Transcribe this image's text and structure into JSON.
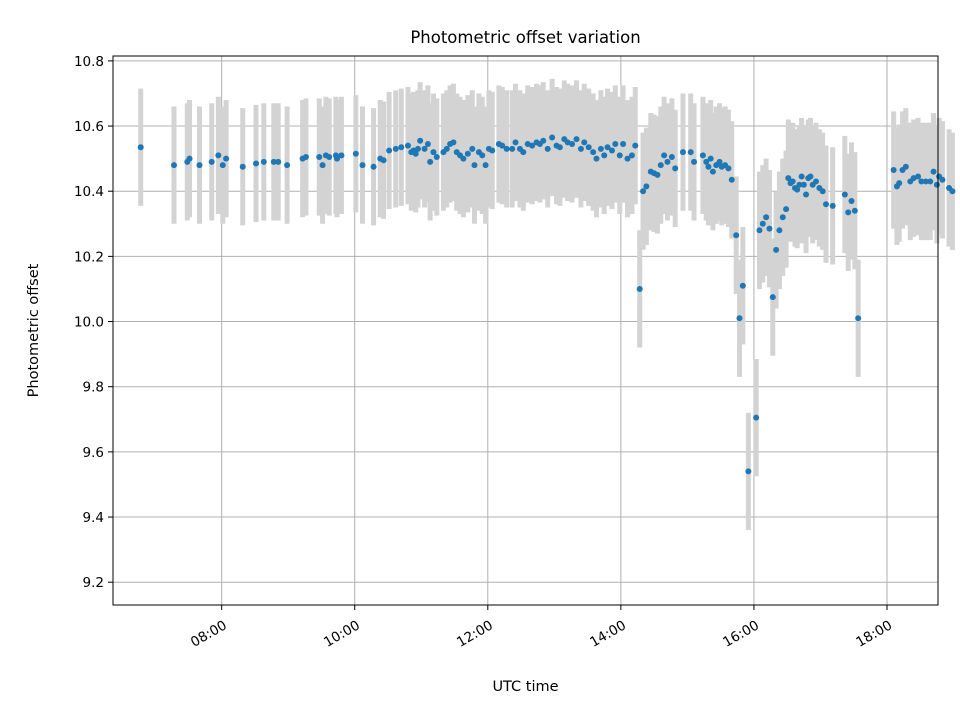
{
  "chart_data": {
    "type": "scatter",
    "title": "Photometric offset variation",
    "xlabel": "UTC time",
    "ylabel": "Photometric offset",
    "x_unit": "UTC time of day",
    "xlim": [
      "06:22",
      "18:46"
    ],
    "ylim": [
      9.13,
      10.815
    ],
    "x_ticks": [
      "08:00",
      "10:00",
      "12:00",
      "14:00",
      "16:00",
      "18:00"
    ],
    "y_ticks": [
      9.2,
      9.4,
      9.6,
      9.8,
      10.0,
      10.2,
      10.4,
      10.6,
      10.8
    ],
    "y_tick_labels": [
      "9.2",
      "9.4",
      "9.6",
      "9.8",
      "10.0",
      "10.2",
      "10.4",
      "10.6",
      "10.8"
    ],
    "grid": true,
    "colors": {
      "points": "#1f77b4",
      "error_bars": "#d3d3d3",
      "grid": "#b0b0b0"
    },
    "series": [
      {
        "error_bar_half_width": 0.18,
        "points": [
          [
            "06:47",
            10.535
          ],
          [
            "07:17",
            10.48
          ],
          [
            "07:29",
            10.49
          ],
          [
            "07:31",
            10.5
          ],
          [
            "07:40",
            10.48
          ],
          [
            "07:51",
            10.49
          ],
          [
            "07:57",
            10.51
          ],
          [
            "08:01",
            10.48
          ],
          [
            "08:04",
            10.5
          ],
          [
            "08:19",
            10.475
          ],
          [
            "08:31",
            10.485
          ],
          [
            "08:38",
            10.49
          ],
          [
            "08:47",
            10.49
          ],
          [
            "08:51",
            10.49
          ],
          [
            "08:59",
            10.48
          ],
          [
            "09:13",
            10.5
          ],
          [
            "09:16",
            10.505
          ],
          [
            "09:28",
            10.505
          ],
          [
            "09:31",
            10.48
          ],
          [
            "09:34",
            10.51
          ],
          [
            "09:37",
            10.505
          ],
          [
            "09:43",
            10.51
          ],
          [
            "09:44",
            10.5
          ],
          [
            "09:48",
            10.51
          ],
          [
            "10:01",
            10.515
          ],
          [
            "10:07",
            10.48
          ],
          [
            "10:17",
            10.475
          ],
          [
            "10:23",
            10.5
          ],
          [
            "10:26",
            10.495
          ],
          [
            "10:31",
            10.525
          ],
          [
            "10:37",
            10.53
          ],
          [
            "10:42",
            10.535
          ],
          [
            "10:48",
            10.54
          ],
          [
            "10:51",
            10.52
          ],
          [
            "10:53",
            10.525
          ],
          [
            "10:55",
            10.515
          ],
          [
            "10:57",
            10.53
          ],
          [
            "10:59",
            10.555
          ],
          [
            "11:03",
            10.53
          ],
          [
            "11:06",
            10.545
          ],
          [
            "11:08",
            10.49
          ],
          [
            "11:11",
            10.52
          ],
          [
            "11:14",
            10.505
          ],
          [
            "11:20",
            10.52
          ],
          [
            "11:23",
            10.53
          ],
          [
            "11:26",
            10.545
          ],
          [
            "11:29",
            10.55
          ],
          [
            "11:32",
            10.52
          ],
          [
            "11:35",
            10.51
          ],
          [
            "11:38",
            10.5
          ],
          [
            "11:42",
            10.515
          ],
          [
            "11:46",
            10.53
          ],
          [
            "11:48",
            10.48
          ],
          [
            "11:52",
            10.52
          ],
          [
            "11:55",
            10.51
          ],
          [
            "11:58",
            10.48
          ],
          [
            "12:01",
            10.53
          ],
          [
            "12:04",
            10.525
          ],
          [
            "12:10",
            10.545
          ],
          [
            "12:13",
            10.54
          ],
          [
            "12:17",
            10.53
          ],
          [
            "12:22",
            10.53
          ],
          [
            "12:25",
            10.55
          ],
          [
            "12:29",
            10.53
          ],
          [
            "12:32",
            10.52
          ],
          [
            "12:36",
            10.545
          ],
          [
            "12:40",
            10.54
          ],
          [
            "12:44",
            10.55
          ],
          [
            "12:47",
            10.545
          ],
          [
            "12:50",
            10.555
          ],
          [
            "12:54",
            10.53
          ],
          [
            "12:58",
            10.565
          ],
          [
            "13:02",
            10.54
          ],
          [
            "13:05",
            10.535
          ],
          [
            "13:09",
            10.56
          ],
          [
            "13:12",
            10.55
          ],
          [
            "13:16",
            10.545
          ],
          [
            "13:20",
            10.56
          ],
          [
            "13:24",
            10.53
          ],
          [
            "13:27",
            10.55
          ],
          [
            "13:31",
            10.535
          ],
          [
            "13:35",
            10.52
          ],
          [
            "13:38",
            10.5
          ],
          [
            "13:42",
            10.53
          ],
          [
            "13:45",
            10.51
          ],
          [
            "13:48",
            10.535
          ],
          [
            "13:52",
            10.525
          ],
          [
            "13:55",
            10.545
          ],
          [
            "13:59",
            10.51
          ],
          [
            "14:02",
            10.545
          ],
          [
            "14:06",
            10.5
          ],
          [
            "14:10",
            10.51
          ],
          [
            "14:13",
            10.54
          ],
          [
            "14:17",
            10.1
          ],
          [
            "14:20",
            10.4
          ],
          [
            "14:23",
            10.415
          ],
          [
            "14:27",
            10.46
          ],
          [
            "14:30",
            10.455
          ],
          [
            "14:33",
            10.45
          ],
          [
            "14:36",
            10.48
          ],
          [
            "14:39",
            10.51
          ],
          [
            "14:42",
            10.49
          ],
          [
            "14:46",
            10.505
          ],
          [
            "14:49",
            10.47
          ],
          [
            "14:56",
            10.52
          ],
          [
            "15:03",
            10.52
          ],
          [
            "15:06",
            10.49
          ],
          [
            "15:14",
            10.51
          ],
          [
            "15:17",
            10.49
          ],
          [
            "15:19",
            10.475
          ],
          [
            "15:21",
            10.5
          ],
          [
            "15:23",
            10.46
          ],
          [
            "15:26",
            10.48
          ],
          [
            "15:29",
            10.49
          ],
          [
            "15:31",
            10.475
          ],
          [
            "15:34",
            10.48
          ],
          [
            "15:37",
            10.47
          ],
          [
            "15:40",
            10.435
          ],
          [
            "15:44",
            10.265
          ],
          [
            "15:47",
            10.01
          ],
          [
            "15:50",
            10.11
          ],
          [
            "15:55",
            9.54
          ],
          [
            "16:02",
            9.705
          ],
          [
            "16:05",
            10.28
          ],
          [
            "16:08",
            10.3
          ],
          [
            "16:11",
            10.32
          ],
          [
            "16:14",
            10.285
          ],
          [
            "16:17",
            10.075
          ],
          [
            "16:20",
            10.22
          ],
          [
            "16:23",
            10.28
          ],
          [
            "16:26",
            10.32
          ],
          [
            "16:29",
            10.345
          ],
          [
            "16:31",
            10.44
          ],
          [
            "16:33",
            10.425
          ],
          [
            "16:35",
            10.43
          ],
          [
            "16:37",
            10.41
          ],
          [
            "16:39",
            10.405
          ],
          [
            "16:41",
            10.42
          ],
          [
            "16:43",
            10.445
          ],
          [
            "16:45",
            10.42
          ],
          [
            "16:47",
            10.39
          ],
          [
            "16:49",
            10.44
          ],
          [
            "16:51",
            10.445
          ],
          [
            "16:53",
            10.42
          ],
          [
            "16:56",
            10.43
          ],
          [
            "16:59",
            10.41
          ],
          [
            "17:02",
            10.4
          ],
          [
            "17:05",
            10.36
          ],
          [
            "17:11",
            10.355
          ],
          [
            "17:22",
            10.39
          ],
          [
            "17:25",
            10.335
          ],
          [
            "17:28",
            10.37
          ],
          [
            "17:31",
            10.34
          ],
          [
            "17:34",
            10.01
          ],
          [
            "18:06",
            10.465
          ],
          [
            "18:09",
            10.415
          ],
          [
            "18:11",
            10.425
          ],
          [
            "18:14",
            10.465
          ],
          [
            "18:17",
            10.475
          ],
          [
            "18:21",
            10.43
          ],
          [
            "18:24",
            10.44
          ],
          [
            "18:28",
            10.445
          ],
          [
            "18:31",
            10.43
          ],
          [
            "18:35",
            10.43
          ],
          [
            "18:39",
            10.43
          ],
          [
            "18:42",
            10.46
          ],
          [
            "18:45",
            10.42
          ],
          [
            "18:47",
            10.445
          ],
          [
            "18:50",
            10.435
          ],
          [
            "18:56",
            10.41
          ],
          [
            "18:59",
            10.4
          ]
        ]
      }
    ]
  }
}
